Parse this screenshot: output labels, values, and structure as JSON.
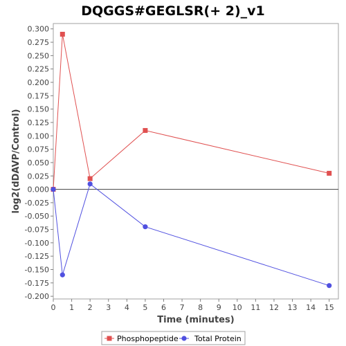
{
  "chart_data": {
    "type": "line",
    "title": "DQGGS#GEGLSR(+ 2)_v1",
    "xlabel": "Time (minutes)",
    "ylabel": "log2(dDAVP/Control)",
    "xlim": [
      0,
      15.5
    ],
    "ylim": [
      -0.205,
      0.31
    ],
    "x_ticks": [
      0,
      1,
      2,
      3,
      4,
      5,
      6,
      7,
      8,
      9,
      10,
      11,
      12,
      13,
      14,
      15
    ],
    "y_ticks": [
      -0.2,
      -0.175,
      -0.15,
      -0.125,
      -0.1,
      -0.075,
      -0.05,
      -0.025,
      0,
      0.025,
      0.05,
      0.075,
      0.1,
      0.125,
      0.15,
      0.175,
      0.2,
      0.225,
      0.25,
      0.275,
      0.3
    ],
    "y_tick_labels": [
      "-0.200",
      "-0.175",
      "-0.150",
      "-0.125",
      "-0.100",
      "-0.075",
      "-0.050",
      "-0.025",
      "0.000",
      "0.025",
      "0.050",
      "0.075",
      "0.100",
      "0.125",
      "0.150",
      "0.175",
      "0.200",
      "0.225",
      "0.250",
      "0.275",
      "0.300"
    ],
    "zero_line": true,
    "grid": false,
    "legend_position": "bottom",
    "series": [
      {
        "name": "Phosphopeptide",
        "color": "#e05050",
        "marker": "square",
        "x": [
          0,
          0.5,
          2,
          5,
          15
        ],
        "y": [
          0.0,
          0.29,
          0.02,
          0.11,
          0.03
        ]
      },
      {
        "name": "Total Protein",
        "color": "#5050e0",
        "marker": "circle",
        "x": [
          0,
          0.5,
          2,
          5,
          15
        ],
        "y": [
          0.0,
          -0.16,
          0.01,
          -0.07,
          -0.18
        ]
      }
    ]
  }
}
